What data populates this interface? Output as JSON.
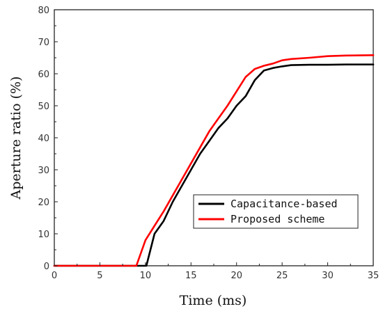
{
  "chart_data": {
    "type": "line",
    "title": "",
    "xlabel": "Time (ms)",
    "ylabel": "Aperture ratio (%)",
    "xlim": [
      0,
      35
    ],
    "ylim": [
      0,
      80
    ],
    "x_ticks": [
      "0",
      "5",
      "10",
      "15",
      "20",
      "25",
      "30",
      "35"
    ],
    "y_ticks": [
      "0",
      "10",
      "20",
      "30",
      "40",
      "50",
      "60",
      "70",
      "80"
    ],
    "grid": false,
    "legend_position": "right",
    "series": [
      {
        "name": "Capacitance-based",
        "color": "#000000",
        "x": [
          0,
          10.1,
          11,
          12,
          13,
          14,
          15,
          16,
          17,
          18,
          19,
          20,
          21,
          22,
          23,
          24,
          25,
          26,
          28,
          30,
          32,
          35
        ],
        "y": [
          0,
          0,
          10,
          14,
          20,
          25,
          30,
          35,
          39,
          43,
          46,
          50,
          53,
          58,
          61,
          61.8,
          62.3,
          62.7,
          62.8,
          62.8,
          62.9,
          62.9
        ]
      },
      {
        "name": "Proposed scheme",
        "color": "#ff0000",
        "x": [
          0,
          9,
          10,
          11,
          12,
          13,
          14,
          15,
          16,
          17,
          18,
          19,
          20,
          21,
          22,
          23,
          24,
          25,
          26,
          28,
          30,
          32,
          35
        ],
        "y": [
          0,
          0,
          8,
          12.5,
          17,
          22,
          27,
          32,
          37,
          42,
          46,
          50,
          54.5,
          59,
          61.5,
          62.5,
          63.2,
          64.2,
          64.6,
          65,
          65.5,
          65.7,
          65.8
        ]
      }
    ]
  }
}
